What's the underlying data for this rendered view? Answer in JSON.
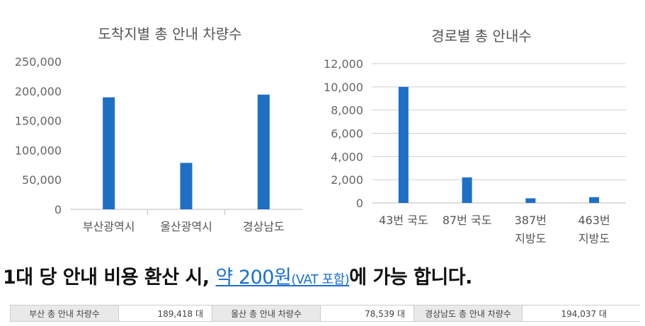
{
  "chart_data": [
    {
      "type": "bar",
      "title": "도착지별 총 안내 차량수",
      "categories": [
        "부산광역시",
        "울산광역시",
        "경상남도"
      ],
      "values": [
        189418,
        78539,
        194037
      ],
      "ylim": [
        0,
        250000
      ],
      "yticks": [
        "0",
        "50,000",
        "100,000",
        "150,000",
        "200,000",
        "250,000"
      ],
      "grid": false,
      "color": "#1f6fc5"
    },
    {
      "type": "bar",
      "title": "경로별 총 안내수",
      "categories": [
        [
          "43번 국도"
        ],
        [
          "87번 국도"
        ],
        [
          "387번",
          "지방도"
        ],
        [
          "463번",
          "지방도"
        ]
      ],
      "values": [
        10000,
        2200,
        400,
        500
      ],
      "ylim": [
        0,
        12000
      ],
      "yticks": [
        "0",
        "2,000",
        "4,000",
        "6,000",
        "8,000",
        "10,000",
        "12,000"
      ],
      "grid": true,
      "color": "#1f6fc5"
    }
  ],
  "headline": {
    "prefix": "1대 당 안내 비용 환산 시, ",
    "link": "약 200원",
    "vat": "(VAT 포함)",
    "suffix": "에 가능 합니다."
  },
  "summary": [
    {
      "label": "부산 총 안내 차량수",
      "value": "189,418 대"
    },
    {
      "label": "울산 총 안내 차량수",
      "value": "78,539 대"
    },
    {
      "label": "경상남도 총 안내 차량수",
      "value": "194,037 대"
    }
  ]
}
